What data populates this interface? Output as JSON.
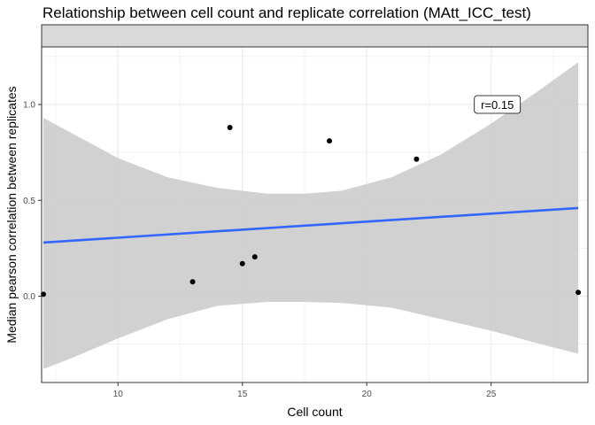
{
  "chart_data": {
    "type": "scatter",
    "title": "Relationship between cell count and replicate correlation (MAtt_ICC_test)",
    "xlabel": "Cell count",
    "ylabel": "Median pearson correlation between replicates",
    "xlim": [
      6.93,
      28.89
    ],
    "ylim": [
      -0.45,
      1.3
    ],
    "xticks": [
      10,
      15,
      20,
      25
    ],
    "yticks": [
      0.0,
      0.5,
      1.0
    ],
    "xtick_labels": [
      "10",
      "15",
      "20",
      "25"
    ],
    "ytick_labels": [
      "0.0",
      "0.5",
      "1.0"
    ],
    "grid": true,
    "facet_strip_label": "",
    "points": [
      {
        "x": 7.0,
        "y": 0.01
      },
      {
        "x": 13.0,
        "y": 0.075
      },
      {
        "x": 14.5,
        "y": 0.88
      },
      {
        "x": 15.0,
        "y": 0.17
      },
      {
        "x": 15.5,
        "y": 0.205
      },
      {
        "x": 18.5,
        "y": 0.81
      },
      {
        "x": 22.0,
        "y": 0.715
      },
      {
        "x": 28.5,
        "y": 0.02
      }
    ],
    "fit_line": {
      "x": [
        7.0,
        28.5
      ],
      "y": [
        0.28,
        0.46
      ],
      "color": "#3366FF"
    },
    "confidence_band": {
      "x": [
        7.0,
        8,
        10,
        12,
        14,
        16,
        17.5,
        19,
        21,
        23,
        25,
        27,
        28.5
      ],
      "upper": [
        0.93,
        0.86,
        0.72,
        0.62,
        0.565,
        0.535,
        0.535,
        0.55,
        0.62,
        0.74,
        0.9,
        1.08,
        1.22
      ],
      "lower": [
        -0.38,
        -0.33,
        -0.22,
        -0.12,
        -0.05,
        -0.03,
        -0.03,
        -0.035,
        -0.06,
        -0.12,
        -0.18,
        -0.25,
        -0.3
      ],
      "color": "#cccccc"
    },
    "annotation": {
      "text": "r=0.15",
      "x": 25.25,
      "y": 1.0
    }
  }
}
